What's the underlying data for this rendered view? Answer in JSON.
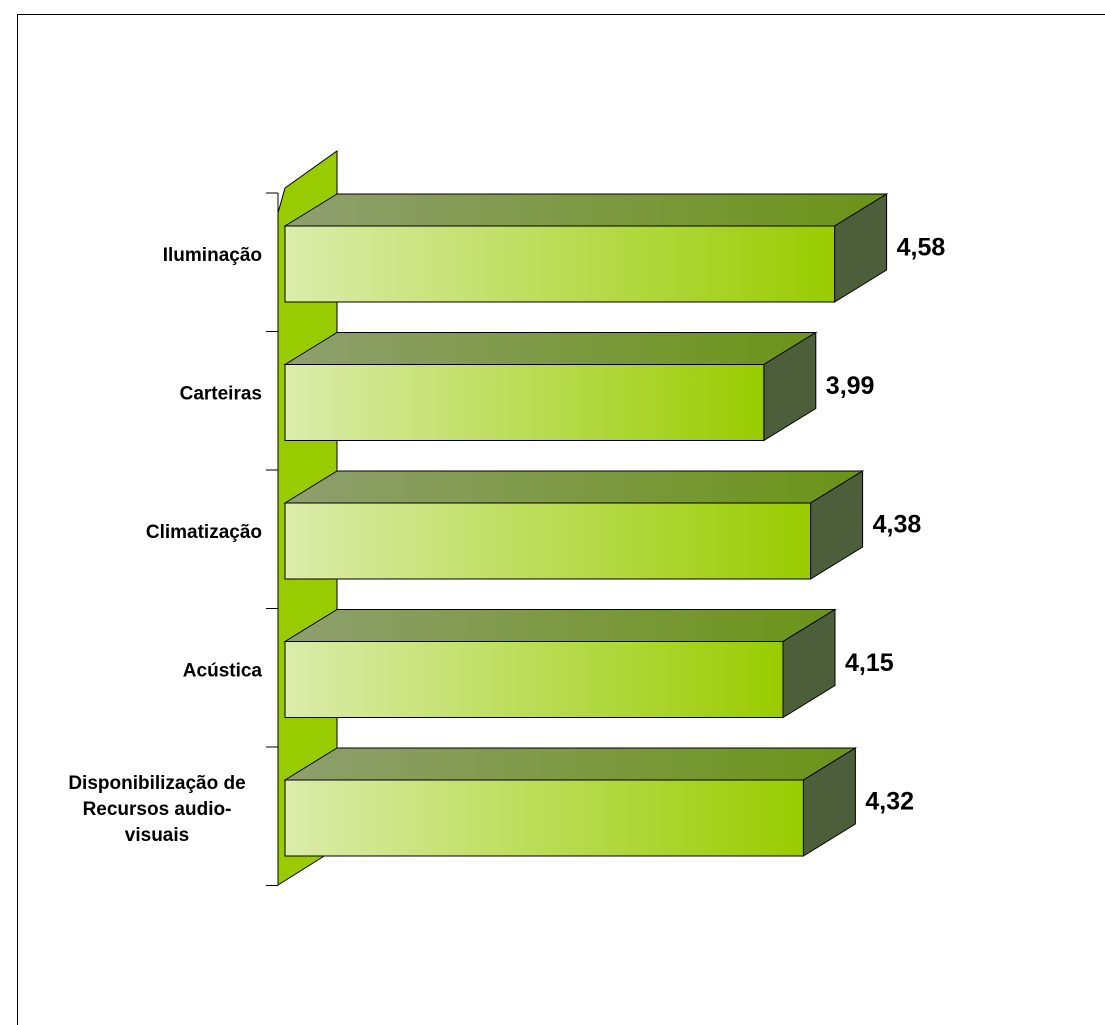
{
  "chart_data": {
    "type": "bar",
    "orientation": "horizontal",
    "style": "3d",
    "categories": [
      [
        "Iluminação"
      ],
      [
        "Carteiras"
      ],
      [
        "Climatização"
      ],
      [
        "Acústica"
      ],
      [
        "Disponibilização de",
        "Recursos  audio-",
        "visuais"
      ]
    ],
    "values": [
      4.58,
      3.99,
      4.38,
      4.15,
      4.32
    ],
    "value_labels": [
      "4,58",
      "3,99",
      "4,38",
      "4,15",
      "4,32"
    ],
    "xlim": [
      0,
      5
    ],
    "grid": false,
    "legend": "none",
    "colors": {
      "bar_front_light": "#dcecab",
      "bar_front_dark": "#99cc00",
      "bar_top_light": "#8f9f6f",
      "bar_top_dark": "#6b9417",
      "bar_side": "#4d5f3a",
      "wall": "#99cc00",
      "outline": "#000000"
    }
  }
}
